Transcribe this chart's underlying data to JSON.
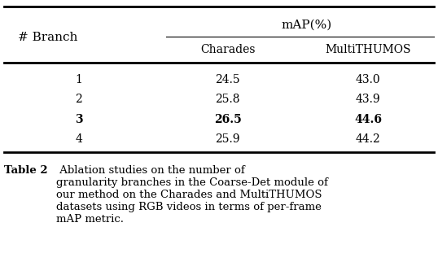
{
  "title": "Table 2",
  "caption": " Ablation studies on the number of\ngranularity branches in the Coarse-Det module of\nour method on the Charades and MultiTHUMOS\ndatasets using RGB videos in terms of per-frame\nmAP metric.",
  "header_top": "mAP(%)",
  "col_headers": [
    "# Branch",
    "Charades",
    "MultiTHUMOS"
  ],
  "rows": [
    [
      "1",
      "24.5",
      "43.0"
    ],
    [
      "2",
      "25.8",
      "43.9"
    ],
    [
      "3",
      "26.5",
      "44.6"
    ],
    [
      "4",
      "25.9",
      "44.2"
    ]
  ],
  "bold_row": 2,
  "bg_color": "#ffffff",
  "text_color": "#000000",
  "font_size": 10,
  "caption_font_size": 9.5
}
